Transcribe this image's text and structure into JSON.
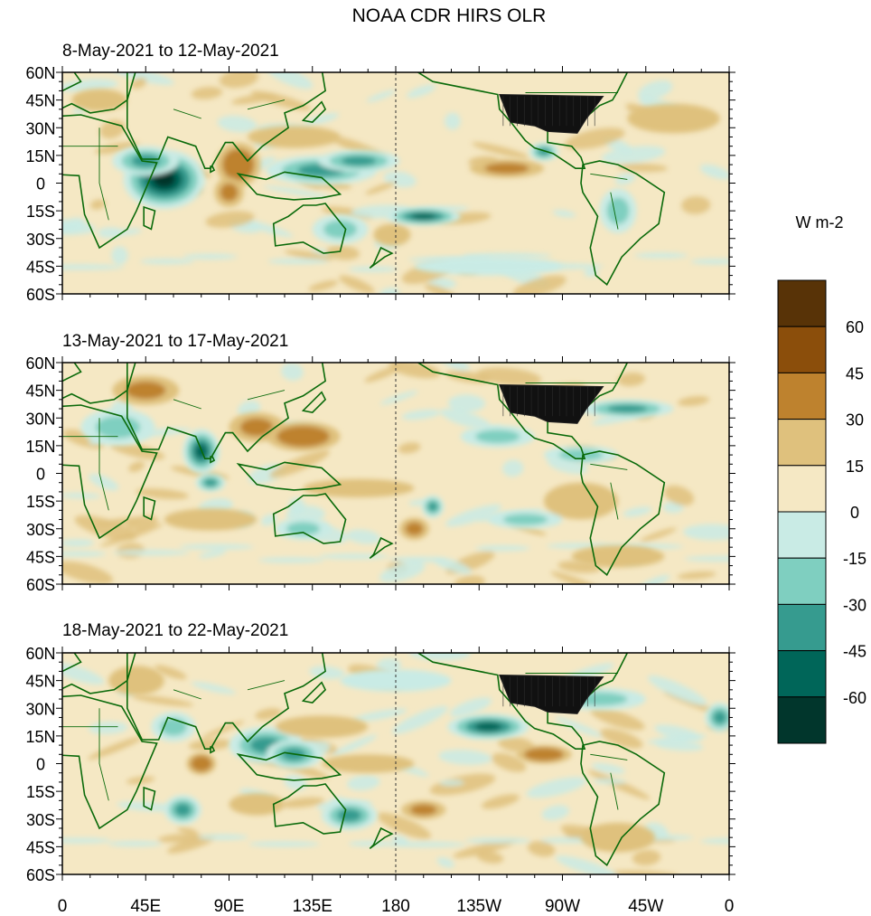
{
  "chart_data": {
    "type": "heatmap",
    "title": "NOAA CDR HIRS OLR",
    "variable": "OLR anomaly",
    "units": "W m-2",
    "x_ticks": [
      "0",
      "45E",
      "90E",
      "135E",
      "180",
      "135W",
      "90W",
      "45W",
      "0"
    ],
    "y_ticks": [
      "60N",
      "45N",
      "30N",
      "15N",
      "0",
      "15S",
      "30S",
      "45S",
      "60S"
    ],
    "lon_range": [
      0,
      360
    ],
    "lat_range": [
      -60,
      60
    ],
    "dateline_marker": "180",
    "colorbar": {
      "labels": [
        "60",
        "45",
        "30",
        "15",
        "0",
        "-15",
        "-30",
        "-45",
        "-60"
      ],
      "levels": [
        -60,
        -45,
        -30,
        -15,
        0,
        15,
        30,
        45,
        60
      ],
      "colors": [
        "#01362c",
        "#006659",
        "#369b8f",
        "#7fcfc0",
        "#c9ebe5",
        "#f5e8c4",
        "#dfc17d",
        "#be822e",
        "#8b4e0b",
        "#583307"
      ]
    },
    "panels": [
      {
        "subtitle": "8-May-2021 to 12-May-2021",
        "anomalies": [
          {
            "lon": 55,
            "lat": 2,
            "rx": 22,
            "ry": 16,
            "v": -75
          },
          {
            "lon": 45,
            "lat": 12,
            "rx": 18,
            "ry": 8,
            "v": -45
          },
          {
            "lon": 95,
            "lat": 10,
            "rx": 12,
            "ry": 12,
            "v": 35
          },
          {
            "lon": 90,
            "lat": -5,
            "rx": 8,
            "ry": 8,
            "v": 30
          },
          {
            "lon": 125,
            "lat": 25,
            "rx": 25,
            "ry": 6,
            "v": 25
          },
          {
            "lon": 140,
            "lat": 7,
            "rx": 30,
            "ry": 8,
            "v": -35
          },
          {
            "lon": 160,
            "lat": 12,
            "rx": 22,
            "ry": 6,
            "v": -40
          },
          {
            "lon": 150,
            "lat": -25,
            "rx": 15,
            "ry": 8,
            "v": -30
          },
          {
            "lon": 195,
            "lat": -18,
            "rx": 20,
            "ry": 5,
            "v": -55
          },
          {
            "lon": 178,
            "lat": -28,
            "rx": 10,
            "ry": 6,
            "v": 25
          },
          {
            "lon": 260,
            "lat": 17,
            "rx": 8,
            "ry": 5,
            "v": -40
          },
          {
            "lon": 240,
            "lat": 8,
            "rx": 20,
            "ry": 5,
            "v": 30
          },
          {
            "lon": 330,
            "lat": 35,
            "rx": 25,
            "ry": 8,
            "v": 25
          },
          {
            "lon": 300,
            "lat": -15,
            "rx": 10,
            "ry": 12,
            "v": -20
          },
          {
            "lon": 20,
            "lat": 45,
            "rx": 15,
            "ry": 6,
            "v": 20
          },
          {
            "lon": 230,
            "lat": -45,
            "rx": 40,
            "ry": 5,
            "v": -15
          }
        ]
      },
      {
        "subtitle": "13-May-2021 to 17-May-2021",
        "anomalies": [
          {
            "lon": 45,
            "lat": 45,
            "rx": 18,
            "ry": 8,
            "v": 30
          },
          {
            "lon": 75,
            "lat": 12,
            "rx": 10,
            "ry": 12,
            "v": -60
          },
          {
            "lon": 80,
            "lat": -5,
            "rx": 8,
            "ry": 5,
            "v": -45
          },
          {
            "lon": 105,
            "lat": 25,
            "rx": 15,
            "ry": 8,
            "v": 30
          },
          {
            "lon": 130,
            "lat": 20,
            "rx": 20,
            "ry": 8,
            "v": 35
          },
          {
            "lon": 160,
            "lat": -8,
            "rx": 30,
            "ry": 5,
            "v": 25
          },
          {
            "lon": 30,
            "lat": 25,
            "rx": 20,
            "ry": 10,
            "v": -20
          },
          {
            "lon": 130,
            "lat": -30,
            "rx": 15,
            "ry": 6,
            "v": -25
          },
          {
            "lon": 80,
            "lat": -25,
            "rx": 25,
            "ry": 6,
            "v": 25
          },
          {
            "lon": 200,
            "lat": -18,
            "rx": 6,
            "ry": 6,
            "v": -45
          },
          {
            "lon": 235,
            "lat": 20,
            "rx": 20,
            "ry": 6,
            "v": -30
          },
          {
            "lon": 280,
            "lat": 10,
            "rx": 20,
            "ry": 5,
            "v": -30
          },
          {
            "lon": 305,
            "lat": 35,
            "rx": 25,
            "ry": 5,
            "v": -40
          },
          {
            "lon": 190,
            "lat": -30,
            "rx": 8,
            "ry": 6,
            "v": 30
          },
          {
            "lon": 280,
            "lat": -15,
            "rx": 20,
            "ry": 10,
            "v": 20
          },
          {
            "lon": 300,
            "lat": -45,
            "rx": 25,
            "ry": 6,
            "v": 25
          },
          {
            "lon": 250,
            "lat": -25,
            "rx": 20,
            "ry": 5,
            "v": -20
          }
        ]
      },
      {
        "subtitle": "18-May-2021 to 22-May-2021",
        "anomalies": [
          {
            "lon": 75,
            "lat": 0,
            "rx": 8,
            "ry": 6,
            "v": 40
          },
          {
            "lon": 110,
            "lat": 10,
            "rx": 20,
            "ry": 10,
            "v": -35
          },
          {
            "lon": 125,
            "lat": 5,
            "rx": 15,
            "ry": 8,
            "v": -40
          },
          {
            "lon": 60,
            "lat": 20,
            "rx": 12,
            "ry": 8,
            "v": -25
          },
          {
            "lon": 65,
            "lat": -25,
            "rx": 10,
            "ry": 8,
            "v": -40
          },
          {
            "lon": 140,
            "lat": 20,
            "rx": 25,
            "ry": 6,
            "v": 25
          },
          {
            "lon": 155,
            "lat": -28,
            "rx": 15,
            "ry": 8,
            "v": -40
          },
          {
            "lon": 105,
            "lat": -22,
            "rx": 15,
            "ry": 6,
            "v": 25
          },
          {
            "lon": 230,
            "lat": 20,
            "rx": 22,
            "ry": 7,
            "v": -50
          },
          {
            "lon": 260,
            "lat": 5,
            "rx": 15,
            "ry": 5,
            "v": 35
          },
          {
            "lon": 290,
            "lat": 35,
            "rx": 25,
            "ry": 6,
            "v": -30
          },
          {
            "lon": 355,
            "lat": 25,
            "rx": 8,
            "ry": 8,
            "v": -40
          },
          {
            "lon": 195,
            "lat": -25,
            "rx": 12,
            "ry": 5,
            "v": 30
          },
          {
            "lon": 180,
            "lat": 45,
            "rx": 30,
            "ry": 6,
            "v": -15
          },
          {
            "lon": 40,
            "lat": 45,
            "rx": 15,
            "ry": 8,
            "v": 20
          },
          {
            "lon": 300,
            "lat": -40,
            "rx": 20,
            "ry": 8,
            "v": 20
          },
          {
            "lon": 165,
            "lat": 0,
            "rx": 25,
            "ry": 5,
            "v": 25
          }
        ]
      }
    ]
  }
}
